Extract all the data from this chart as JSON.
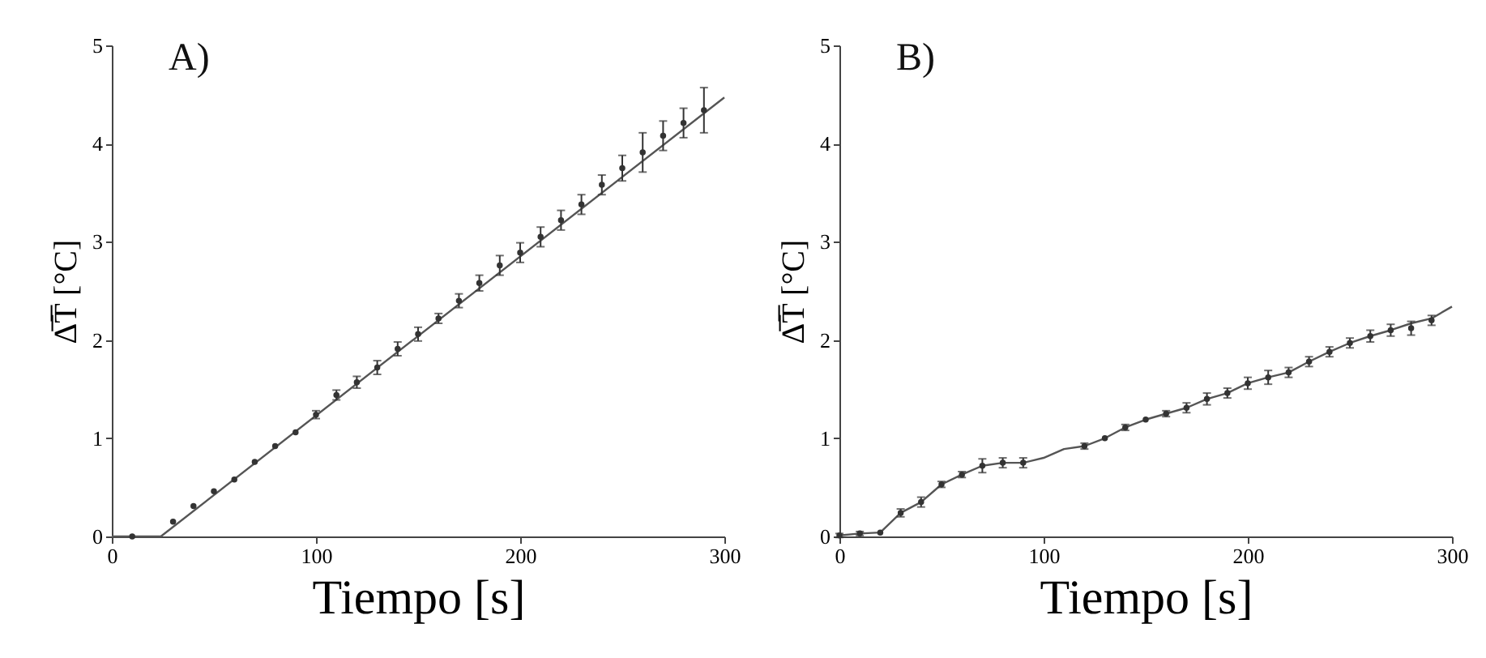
{
  "chart_data": [
    {
      "type": "scatter",
      "title": "A)",
      "xlabel": "Tiempo [s]",
      "ylabel": "Δ̅T̅ [°C]",
      "xlim": [
        0,
        300
      ],
      "xticks": [
        0,
        100,
        200,
        300
      ],
      "ylim": [
        0,
        5
      ],
      "yticks": [
        0,
        1,
        2,
        3,
        4,
        5
      ],
      "grid": false,
      "series": [
        {
          "marker": "circle",
          "color": "#333333",
          "x": [
            10,
            30,
            40,
            50,
            60,
            70,
            80,
            90,
            100,
            110,
            120,
            130,
            140,
            150,
            160,
            170,
            180,
            190,
            200,
            210,
            220,
            230,
            240,
            250,
            260,
            270,
            280,
            290
          ],
          "values": [
            0,
            0.15,
            0.31,
            0.46,
            0.58,
            0.76,
            0.92,
            1.06,
            1.24,
            1.44,
            1.57,
            1.72,
            1.91,
            2.06,
            2.22,
            2.4,
            2.58,
            2.76,
            2.89,
            3.05,
            3.22,
            3.38,
            3.58,
            3.75,
            3.91,
            4.08,
            4.21,
            4.34
          ],
          "errors": [
            null,
            null,
            null,
            null,
            null,
            null,
            null,
            null,
            0.04,
            0.05,
            0.06,
            0.07,
            0.07,
            0.07,
            0.05,
            0.07,
            0.08,
            0.1,
            0.1,
            0.1,
            0.1,
            0.1,
            0.1,
            0.13,
            0.2,
            0.15,
            0.15,
            0.23
          ]
        },
        {
          "type": "line",
          "color": "#555555",
          "x": [
            0,
            24,
            300
          ],
          "values": [
            0,
            0,
            4.47
          ]
        }
      ]
    },
    {
      "type": "scatter",
      "title": "B)",
      "xlabel": "Tiempo [s]",
      "ylabel": "Δ̅T̅ [°C]",
      "xlim": [
        0,
        300
      ],
      "xticks": [
        0,
        100,
        200,
        300
      ],
      "ylim": [
        0,
        5
      ],
      "yticks": [
        0,
        1,
        2,
        3,
        4,
        5
      ],
      "grid": false,
      "series": [
        {
          "marker": "circle",
          "color": "#333333",
          "x": [
            0,
            10,
            20,
            30,
            40,
            50,
            60,
            70,
            80,
            90,
            120,
            130,
            140,
            150,
            160,
            170,
            180,
            190,
            200,
            210,
            220,
            230,
            240,
            250,
            260,
            270,
            280,
            290
          ],
          "values": [
            0.01,
            0.03,
            0.04,
            0.24,
            0.35,
            0.53,
            0.63,
            0.72,
            0.75,
            0.75,
            0.92,
            1.0,
            1.11,
            1.19,
            1.25,
            1.31,
            1.4,
            1.46,
            1.56,
            1.62,
            1.67,
            1.78,
            1.88,
            1.97,
            2.04,
            2.1,
            2.12,
            2.2
          ],
          "errors": [
            0.02,
            0.02,
            null,
            0.04,
            0.05,
            0.03,
            0.03,
            0.07,
            0.05,
            0.05,
            0.03,
            null,
            0.03,
            null,
            0.03,
            0.05,
            0.06,
            0.05,
            0.06,
            0.07,
            0.05,
            0.05,
            0.05,
            0.05,
            0.06,
            0.06,
            0.07,
            0.05
          ]
        },
        {
          "type": "line",
          "color": "#555555",
          "x": [
            0,
            10,
            20,
            30,
            40,
            50,
            60,
            70,
            80,
            90,
            100,
            110,
            120,
            130,
            140,
            150,
            160,
            170,
            180,
            190,
            200,
            210,
            220,
            230,
            240,
            250,
            260,
            270,
            280,
            290,
            300
          ],
          "values": [
            0.01,
            0.03,
            0.04,
            0.24,
            0.35,
            0.53,
            0.63,
            0.72,
            0.75,
            0.75,
            0.8,
            0.89,
            0.92,
            1.0,
            1.11,
            1.19,
            1.25,
            1.31,
            1.4,
            1.46,
            1.56,
            1.62,
            1.67,
            1.78,
            1.88,
            1.97,
            2.04,
            2.1,
            2.17,
            2.22,
            2.34
          ]
        }
      ]
    }
  ]
}
